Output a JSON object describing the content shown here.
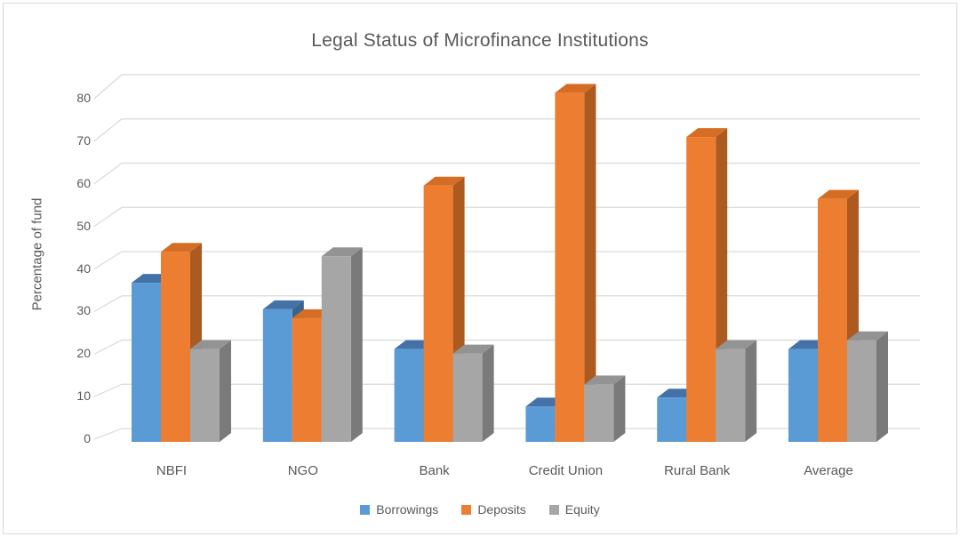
{
  "chart_data": {
    "type": "bar",
    "variant": "3d-clustered-column",
    "title": "Legal Status of Microfinance Institutions",
    "ylabel": "Percentage of fund",
    "xlabel": "",
    "categories": [
      "NBFI",
      "NGO",
      "Bank",
      "Credit Union",
      "Rural Bank",
      "Average"
    ],
    "series": [
      {
        "name": "Borrowings",
        "color": "#5B9BD5",
        "color_top": "#4472A8",
        "color_side": "#3A648F",
        "values": [
          36,
          30,
          21,
          8,
          10,
          21
        ]
      },
      {
        "name": "Deposits",
        "color": "#ED7D31",
        "color_top": "#D56E24",
        "color_side": "#AC5A1F",
        "values": [
          43,
          28,
          58,
          79,
          69,
          55
        ]
      },
      {
        "name": "Equity",
        "color": "#A6A6A6",
        "color_top": "#939393",
        "color_side": "#7A7A7A",
        "values": [
          21,
          42,
          20,
          13,
          21,
          23
        ]
      }
    ],
    "ylim": [
      0,
      80
    ],
    "ytick_step": 10,
    "grid": true,
    "legend_position": "bottom"
  },
  "colors": {
    "background": "#FFFFFF",
    "border": "#D9D9D9",
    "gridline": "#D9D9D9",
    "text": "#595959"
  }
}
